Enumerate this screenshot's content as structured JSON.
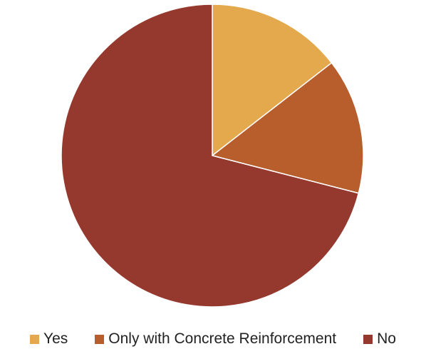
{
  "chart_data": {
    "type": "pie",
    "title": "",
    "legend_position": "bottom",
    "slices": [
      {
        "label": "Yes",
        "value": 14.5,
        "color": "#E3A94C"
      },
      {
        "label": "Only with Concrete Reinforcement",
        "value": 14.5,
        "color": "#B85E2C"
      },
      {
        "label": "No",
        "value": 71.0,
        "color": "#95382E"
      }
    ]
  }
}
